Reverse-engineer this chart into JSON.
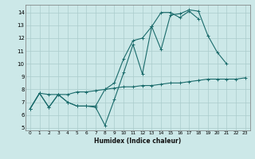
{
  "xlabel": "Humidex (Indice chaleur)",
  "bg_color": "#cce8e8",
  "grid_color": "#aacccc",
  "line_color": "#1a6b6b",
  "xlim": [
    -0.5,
    23.5
  ],
  "ylim": [
    4.8,
    14.6
  ],
  "yticks": [
    5,
    6,
    7,
    8,
    9,
    10,
    11,
    12,
    13,
    14
  ],
  "xticks": [
    0,
    1,
    2,
    3,
    4,
    5,
    6,
    7,
    8,
    9,
    10,
    11,
    12,
    13,
    14,
    15,
    16,
    17,
    18,
    19,
    20,
    21,
    22,
    23
  ],
  "curve1_x": [
    0,
    1,
    2,
    3,
    4,
    5,
    6,
    7,
    8,
    9,
    10,
    11,
    12,
    13,
    14,
    15,
    16,
    17,
    18,
    19,
    20,
    21
  ],
  "curve1_y": [
    6.5,
    7.7,
    6.6,
    7.6,
    7.0,
    6.7,
    6.7,
    6.6,
    5.2,
    7.2,
    9.3,
    11.5,
    9.2,
    12.9,
    11.1,
    13.8,
    13.9,
    14.2,
    14.1,
    12.2,
    10.9,
    10.0
  ],
  "curve2_x": [
    0,
    1,
    2,
    3,
    4,
    5,
    6,
    7,
    8,
    9,
    10,
    11,
    12,
    13,
    14,
    15,
    16,
    17,
    18,
    19,
    20,
    21,
    22,
    23
  ],
  "curve2_y": [
    6.5,
    7.7,
    6.6,
    7.6,
    7.0,
    6.7,
    6.7,
    6.7,
    8.0,
    8.5,
    10.4,
    11.8,
    12.0,
    12.9,
    14.0,
    14.0,
    13.6,
    14.1,
    13.5,
    null,
    null,
    null,
    null,
    null
  ],
  "curve3_x": [
    0,
    1,
    2,
    3,
    4,
    5,
    6,
    7,
    8,
    9,
    10,
    11,
    12,
    13,
    14,
    15,
    16,
    17,
    18,
    19,
    20,
    21,
    22,
    23
  ],
  "curve3_y": [
    6.5,
    7.7,
    7.6,
    7.6,
    7.6,
    7.8,
    7.8,
    7.9,
    8.0,
    8.1,
    8.2,
    8.2,
    8.3,
    8.3,
    8.4,
    8.5,
    8.5,
    8.6,
    8.7,
    8.8,
    8.8,
    8.8,
    8.8,
    8.9
  ]
}
